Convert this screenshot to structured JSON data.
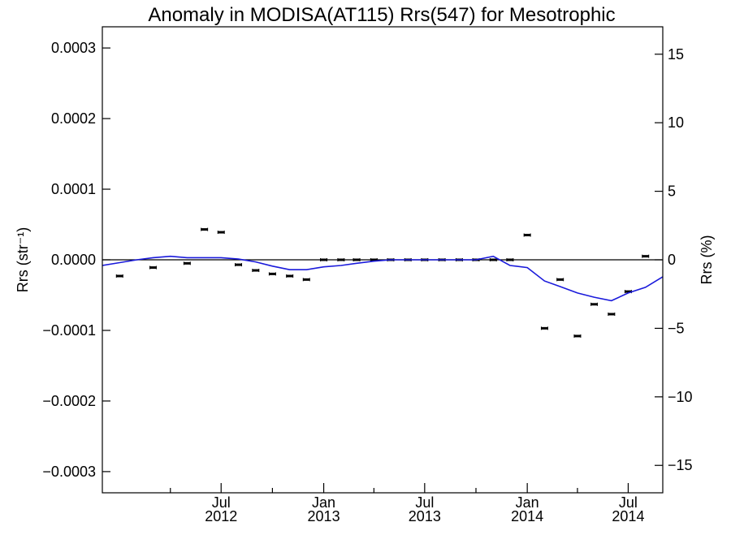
{
  "chart_data": {
    "type": "scatter",
    "title": "Anomaly in MODISA(AT115) Rrs(547) for Mesotrophic",
    "ylabel_left": "Rrs (str⁻¹)",
    "ylabel_right": "Rrs (%)",
    "xlim": [
      "2011-12-01",
      "2014-09-01"
    ],
    "ylim_left": [
      -0.00033,
      0.00033
    ],
    "ylim_right": [
      -17,
      17
    ],
    "x_ticks": [
      {
        "date": "2012-07-01",
        "month": "Jul",
        "year": "2012"
      },
      {
        "date": "2013-01-01",
        "month": "Jan",
        "year": "2013"
      },
      {
        "date": "2013-07-01",
        "month": "Jul",
        "year": "2013"
      },
      {
        "date": "2014-01-01",
        "month": "Jan",
        "year": "2014"
      },
      {
        "date": "2014-07-01",
        "month": "Jul",
        "year": "2014"
      }
    ],
    "x_minor_ticks": [
      "2012-04-01",
      "2012-10-01",
      "2013-04-01",
      "2013-10-01",
      "2014-04-01"
    ],
    "y_ticks_left": [
      {
        "value": 0.0003,
        "label": "0.0003"
      },
      {
        "value": 0.0002,
        "label": "0.0002"
      },
      {
        "value": 0.0001,
        "label": "0.0001"
      },
      {
        "value": 0.0,
        "label": "0.0000"
      },
      {
        "value": -0.0001,
        "label": "−0.0001"
      },
      {
        "value": -0.0002,
        "label": "−0.0002"
      },
      {
        "value": -0.0003,
        "label": "−0.0003"
      }
    ],
    "y_ticks_right": [
      {
        "value": 15,
        "label": "15"
      },
      {
        "value": 10,
        "label": "10"
      },
      {
        "value": 5,
        "label": "5"
      },
      {
        "value": 0,
        "label": "0"
      },
      {
        "value": -5,
        "label": "−5"
      },
      {
        "value": -10,
        "label": "−10"
      },
      {
        "value": -15,
        "label": "−15"
      }
    ],
    "zero_line": 0,
    "series": [
      {
        "marker": "errorbar",
        "color": "#000000",
        "x": [
          "2012-01-01",
          "2012-03-01",
          "2012-05-01",
          "2012-06-01",
          "2012-07-01",
          "2012-08-01",
          "2012-09-01",
          "2012-10-01",
          "2012-11-01",
          "2012-12-01",
          "2013-01-01",
          "2013-02-01",
          "2013-03-01",
          "2013-04-01",
          "2013-05-01",
          "2013-06-01",
          "2013-07-01",
          "2013-08-01",
          "2013-09-01",
          "2013-10-01",
          "2013-11-01",
          "2013-12-01",
          "2014-01-01",
          "2014-02-01",
          "2014-03-01",
          "2014-04-01",
          "2014-05-01",
          "2014-06-01",
          "2014-07-01",
          "2014-08-01"
        ],
        "y": [
          -2.3e-05,
          -1.1e-05,
          -5e-06,
          4.3e-05,
          3.9e-05,
          -7e-06,
          -1.5e-05,
          -2e-05,
          -2.3e-05,
          -2.8e-05,
          0.0,
          0.0,
          0.0,
          0.0,
          0.0,
          0.0,
          0.0,
          0.0,
          0.0,
          0.0,
          0.0,
          0.0,
          3.5e-05,
          -9.7e-05,
          -2.8e-05,
          -0.000108,
          -6.3e-05,
          -7.7e-05,
          -4.5e-05,
          5e-06
        ]
      },
      {
        "marker": "line",
        "color": "#1a1adb",
        "x": [
          "2011-12-01",
          "2012-01-01",
          "2012-02-01",
          "2012-03-01",
          "2012-04-01",
          "2012-05-01",
          "2012-06-01",
          "2012-07-01",
          "2012-08-01",
          "2012-09-01",
          "2012-10-01",
          "2012-11-01",
          "2012-12-01",
          "2013-01-01",
          "2013-02-01",
          "2013-03-01",
          "2013-04-01",
          "2013-05-01",
          "2013-06-01",
          "2013-07-01",
          "2013-08-01",
          "2013-09-01",
          "2013-10-01",
          "2013-11-01",
          "2013-12-01",
          "2014-01-01",
          "2014-02-01",
          "2014-03-01",
          "2014-04-01",
          "2014-05-01",
          "2014-06-01",
          "2014-07-01",
          "2014-08-01",
          "2014-09-01"
        ],
        "y": [
          -8e-06,
          -4e-06,
          0.0,
          3e-06,
          5e-06,
          3e-06,
          3e-06,
          3e-06,
          1e-06,
          -3e-06,
          -9e-06,
          -1.4e-05,
          -1.4e-05,
          -1e-05,
          -8e-06,
          -5e-06,
          -2e-06,
          0.0,
          0.0,
          0.0,
          0.0,
          0.0,
          0.0,
          5e-06,
          -8e-06,
          -1.1e-05,
          -3e-05,
          -3.8e-05,
          -4.7e-05,
          -5.3e-05,
          -5.8e-05,
          -4.7e-05,
          -3.9e-05,
          -2.4e-05
        ]
      }
    ]
  }
}
